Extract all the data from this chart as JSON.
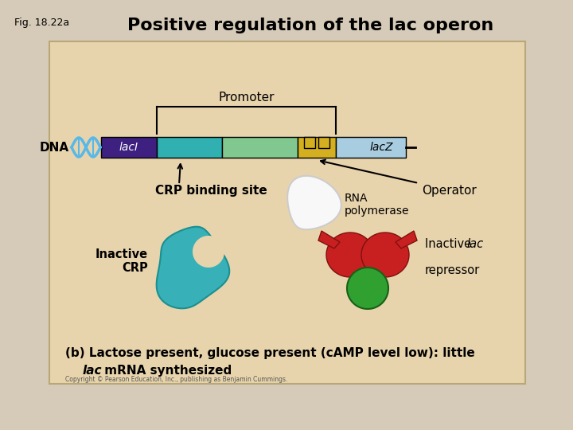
{
  "bg_color": "#e8d4ac",
  "outer_bg": "#d6cbb8",
  "title": "Positive regulation of the lac operon",
  "fig_label": "Fig. 18.22a",
  "title_fontsize": 16,
  "fig_label_fontsize": 9,
  "lacI_label": "lacI",
  "lacZ_label": "lacZ",
  "dna_label": "DNA",
  "promoter_label": "Promoter",
  "crp_site_label": "CRP binding site",
  "operator_label": "Operator",
  "rna_pol_label": "RNA\npolymerase",
  "inactive_crp_label": "Inactive\nCRP",
  "inactive_lac_label1": "Inactive ",
  "inactive_lac_label2": "lac",
  "inactive_lac_label3": "\nrepressor",
  "bottom_text_line1": "(b) Lactose present, glucose present (cAMP level low): little",
  "bottom_text_italic": "lac",
  "bottom_text_line2": " mRNA synthesized",
  "copyright_text": "Copyright © Pearson Education, Inc., publishing as Benjamin Cummings.",
  "lacI_color": "#3d2080",
  "crp_site_color": "#30b0b0",
  "promoter_color": "#80c890",
  "operator_color": "#d4b020",
  "lacZ_color": "#a8cce0",
  "teal_crp_color": "#38b0b8",
  "red_repressor_color": "#c82020",
  "green_inducer_color": "#30a030",
  "dna_wave_color": "#58b8e8",
  "box_border_color": "#b8a878"
}
